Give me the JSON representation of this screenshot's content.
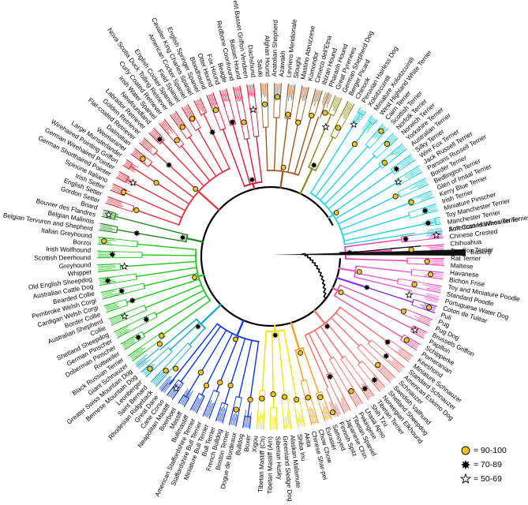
{
  "tree": {
    "outgroup": "Basenji",
    "clades": [
      {
        "color": "#ff2fb0",
        "breeds": [
          "American Hairless Terrier",
          "Chinese Crested",
          "Chihuahua",
          "Toy Fox Terrier",
          "Rat Terrier",
          "Maltese"
        ]
      },
      {
        "color": "#ee59cf",
        "breeds": [
          "Havanese",
          "Bichon Frise",
          "Toy and Miniature Poodle",
          "Standard Poodle",
          "Portuguese Water Dog"
        ]
      },
      {
        "color": "#8a2be2",
        "breeds": [
          "Coton de Tulear",
          "Puli"
        ]
      },
      {
        "color": "#e8549b",
        "breeds": [
          "Pug",
          "Pug Dog",
          "Brussels Griffon",
          "Papillon",
          "Schipperke",
          "Pomeranian"
        ]
      },
      {
        "color": "#f4716b",
        "breeds": [
          "Keeshond",
          "Miniature Schnauzer",
          "Standard Schnauzer",
          "American Eskimo Dog",
          "Schnauzer",
          "Swedish Vallhund",
          "Shetland Sheepdog",
          "Norwegian Elkhound",
          "Tibetan Terrier",
          "Shih Tzu",
          "Lhasa Apso",
          "Pekingese",
          "Tibetan Spaniel",
          "Japanese Chin",
          "Finnish Spitz"
        ]
      },
      {
        "color": "#f89a1c",
        "breeds": [
          "Samoyed",
          "Eurasier",
          "Chow Chow",
          "Chinese Shar-pei"
        ]
      },
      {
        "color": "#f2e200",
        "breeds": [
          "Akita",
          "Shiba Inu",
          "Alaskan Malamute",
          "Greenland Sledge Dog",
          "Siberian Husky",
          "Tibetan Mastiff (Am)",
          "Tibetan Mastiff (Ch)",
          "Xigou"
        ]
      },
      {
        "color": "#0a38e8",
        "breeds": [
          "Boxer",
          "Bulldog",
          "Dogue de Bordeaux",
          "Boston Terrier",
          "French Bulldog",
          "Bull Terrier",
          "Miniature Bull Terrier",
          "Staffordshire Bull Terrier",
          "American Staffordshire Terrier",
          "Bullmastiff",
          "Mastiff",
          "Boerboel",
          "Neapolitan Mastiff",
          "Cane Corso",
          "Great Dane"
        ]
      },
      {
        "color": "#12a8c8",
        "breeds": [
          "Rhodesian Ridgeback",
          "Saint Bernard",
          "Leonberger",
          "Bernese Mountain Dog",
          "Greater Swiss Mountain Dog"
        ]
      },
      {
        "color": "#1dc81d",
        "breeds": [
          "Giant Schnauzer",
          "Black Russian Terrier",
          "Rottweiler",
          "Doberman Pinscher",
          "German Pinscher",
          "Shetland Sheepdog",
          "Collie",
          "Australian Shepherd",
          "Border Collie",
          "Cardigan Welsh Corgi",
          "Pembroke Welsh Corgi",
          "Bearded Collie",
          "Australian Cattle Dog",
          "Old English Sheepdog",
          "Whippet",
          "Greyhound",
          "Scottish Deerhound",
          "Irish Wolfhound",
          "Borzoi",
          "Italian Greyhound"
        ]
      },
      {
        "color": "#1f8a1a",
        "breeds": [
          "Belgian Tervuren and Shepherd",
          "Belgian Malinois",
          "Bouvier des Flandres",
          "Briard"
        ]
      },
      {
        "color": "#e5303a",
        "breeds": [
          "Gordon Setter",
          "English Setter",
          "Irish Setter",
          "Spinone Italiano",
          "German Shorthaired Pointer",
          "German Wirehaired Pointer",
          "Wirehaired Pointing Griffon",
          "Large Munsterlander",
          "Weimaraner",
          "Dalmatian",
          "Flat-coated Retriever",
          "Golden Retriever",
          "Labrador Retriever",
          "Newfoundland",
          "Irish Water Spaniel",
          "Curly Coated Retriever",
          "Nova Scotia Duck Tolling Retriever",
          "English Cocker Spaniel",
          "Field Spaniel",
          "American Cocker Spaniel",
          "Cavalier King Charles Spaniel",
          "English Springer Spaniel"
        ]
      },
      {
        "color": "#d91838",
        "breeds": [
          "Bloodhound",
          "Otter Hound",
          "Fox Hound",
          "Beagle",
          "Redbone Coonhound",
          "Basset Hound",
          "Petit Basset Griffon Vendeen",
          "Dachshund"
        ]
      },
      {
        "color": "#a0561e",
        "breeds": [
          "Saluki",
          "Afghan Hound",
          "Anatolian Shepherd",
          "Azawakh",
          "Levriero Meridionale",
          "Sloughi",
          "Mastino Abruzzese",
          "Komondor",
          "Cirneco dell'Etna",
          "Ibizan Hound",
          "Pharaoh Hound"
        ]
      },
      {
        "color": "#8c8a1a",
        "breeds": [
          "Great Pyrenees",
          "German Shepherd Dog",
          "Berger Picard",
          "Chinook"
        ]
      },
      {
        "color": "#22d3e6",
        "breeds": [
          "Peruvian Hairless Dog",
          "Xoloitzcuintli",
          "Miniature Xoloitzcuintli",
          "West Highland White Terrier",
          "Cairn Terrier",
          "Scottish Terrier",
          "Norfolk Terrier",
          "Norwich Terrier",
          "Yorkshire Terrier",
          "Australian Terrier",
          "Silky Terrier",
          "Wire Fox Terrier",
          "Jack Russell Terrier",
          "Parsons Russell Terrier",
          "Border Terrier",
          "Bedlington Terrier",
          "Glen of Imaal Terrier",
          "Kerry Blue Terrier",
          "Irish Terrier",
          "Miniature Pinscher",
          "Toy Manchester Terrier",
          "Manchester Terrier",
          "Soft Coated Wheaten Terrier"
        ]
      }
    ]
  },
  "legend": [
    {
      "symbol": "circle",
      "color": "#f2c21f",
      "label": "= 90-100"
    },
    {
      "symbol": "burst",
      "color": "#000000",
      "label": "= 70-89"
    },
    {
      "symbol": "star",
      "color": "#ffffff",
      "label": "= 50-69"
    }
  ]
}
